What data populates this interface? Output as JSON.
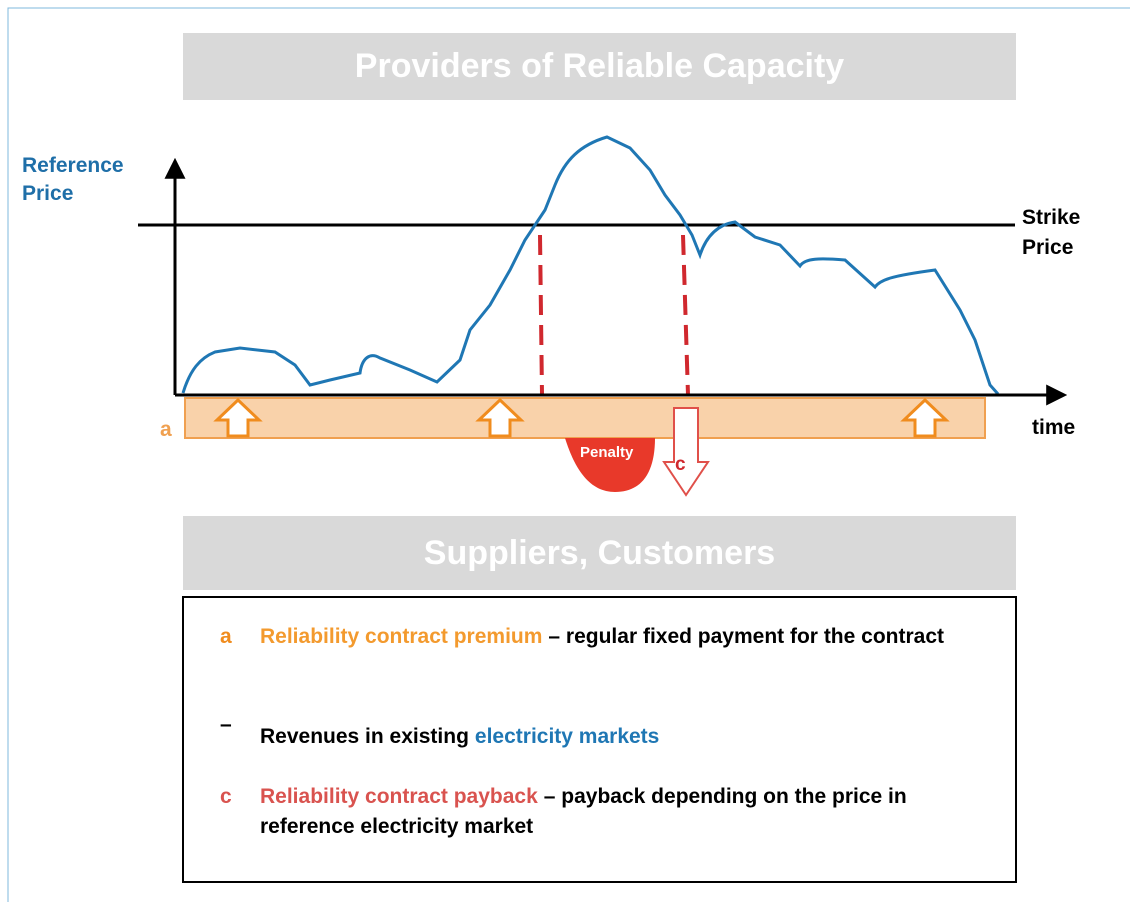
{
  "header": {
    "title": "Providers of Reliable Capacity"
  },
  "diagram": {
    "y_axis_label": "Reference Price",
    "strike_label": "Strike Price",
    "x_axis_label": "time",
    "band_label": "a",
    "penalty_label": "Penalty",
    "payback_label": "c"
  },
  "footer": {
    "title": "Suppliers, Customers"
  },
  "legend": [
    {
      "marker": "a",
      "highlight": "Reliability contract premium",
      "text": "– regular fixed payment for the contract"
    },
    {
      "marker": "–",
      "text": "Revenues in existing",
      "highlight": "electricity markets"
    },
    {
      "marker": "c",
      "highlight": "Reliability contract payback",
      "text": "– payback depending on the price in reference electricity market"
    }
  ]
}
